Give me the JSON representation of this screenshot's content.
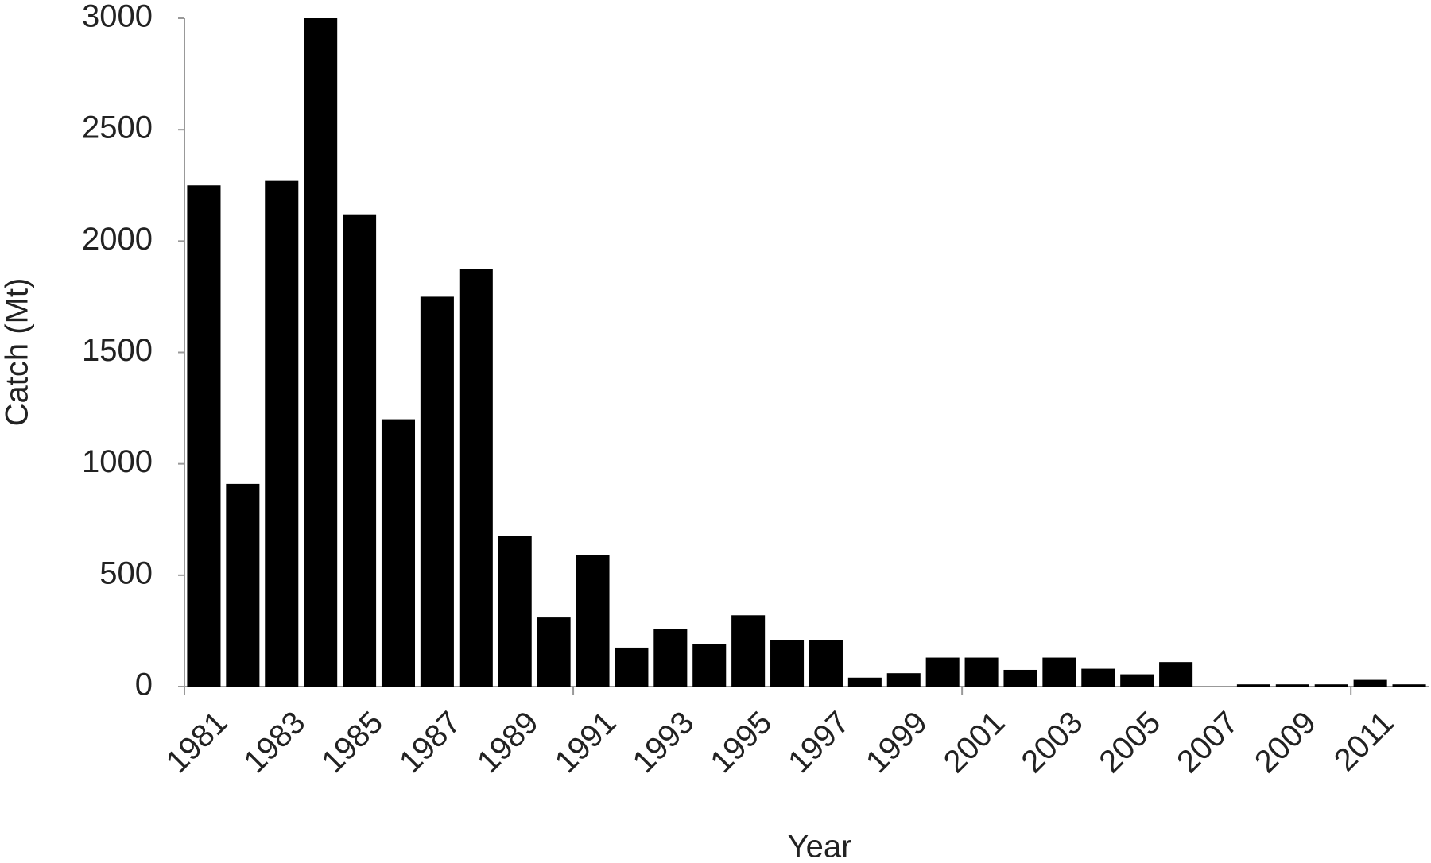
{
  "chart_data": {
    "type": "bar",
    "xlabel": "Year",
    "ylabel": "Catch (Mt)",
    "categories": [
      "1981",
      null,
      "1983",
      null,
      "1985",
      null,
      "1987",
      null,
      "1989",
      null,
      "1991",
      null,
      "1993",
      null,
      "1995",
      null,
      "1997",
      null,
      "1999",
      null,
      "2001",
      null,
      "2003",
      null,
      "2005",
      null,
      "2007",
      null,
      "2009",
      null,
      "2011",
      null
    ],
    "values": [
      2250,
      910,
      2270,
      3000,
      2120,
      1200,
      1750,
      1875,
      675,
      310,
      590,
      175,
      260,
      190,
      320,
      210,
      210,
      40,
      60,
      130,
      130,
      75,
      130,
      80,
      55,
      110,
      0,
      10,
      10,
      10,
      30,
      10
    ],
    "color": "#000000",
    "ylim": [
      0,
      3000
    ],
    "yticks": [
      0,
      500,
      1000,
      1500,
      2000,
      2500,
      3000
    ],
    "grid": false
  }
}
